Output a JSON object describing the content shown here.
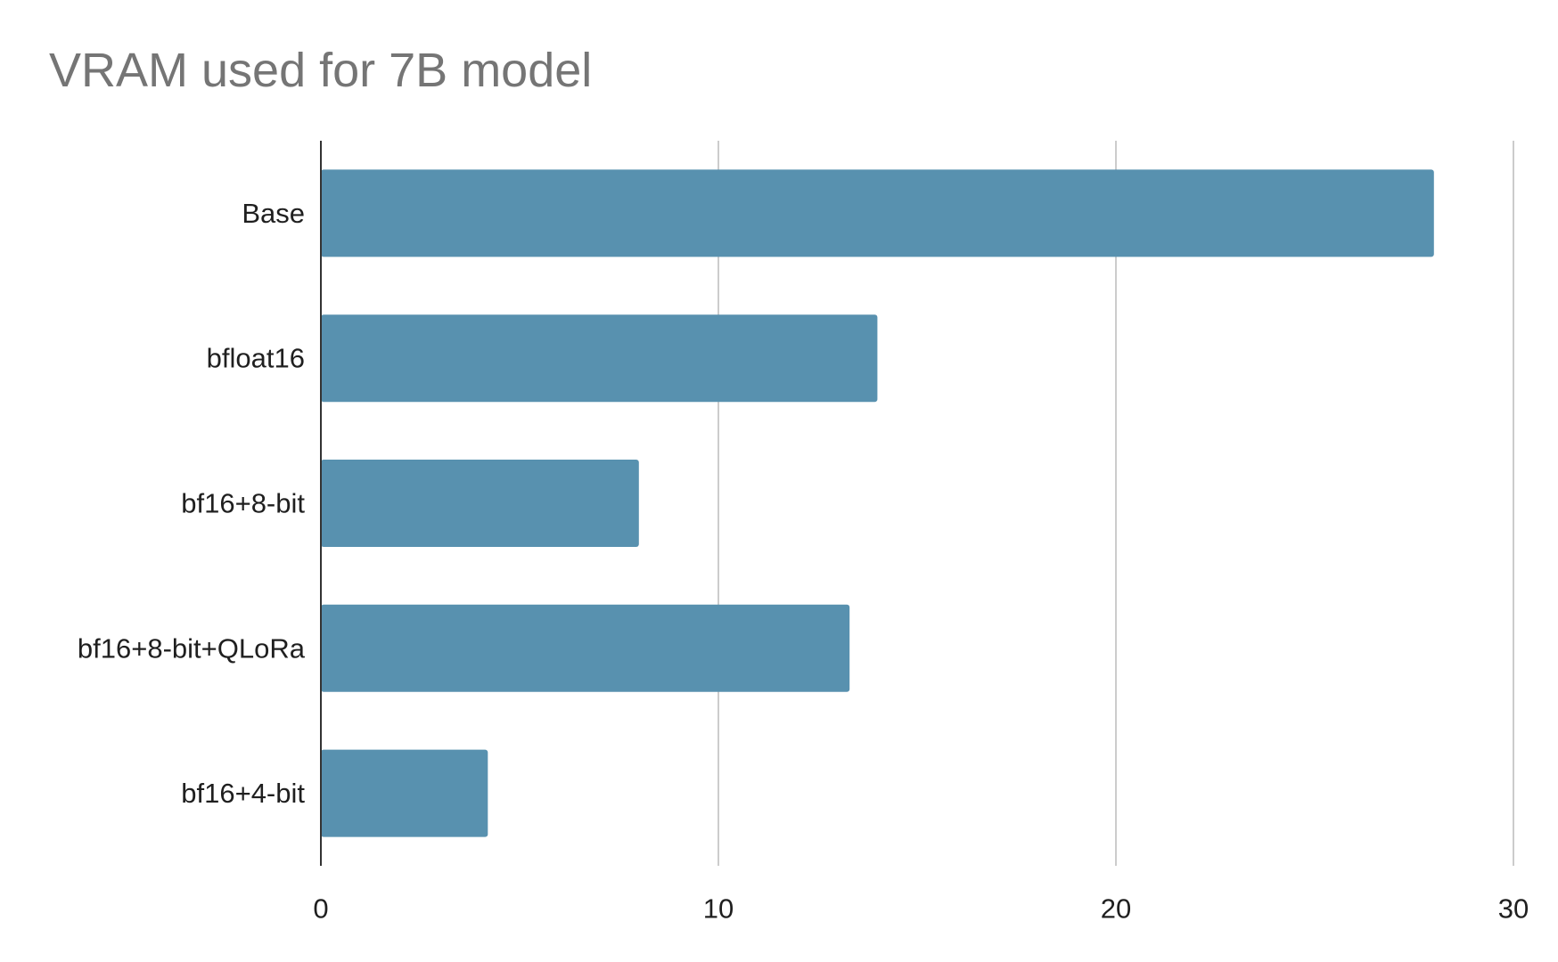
{
  "chart_data": {
    "type": "bar",
    "orientation": "horizontal",
    "title": "VRAM used for 7B model",
    "xlabel": "",
    "ylabel": "",
    "categories": [
      "Base",
      "bfloat16",
      "bf16+8-bit",
      "bf16+8-bit+QLoRa",
      "bf16+4-bit"
    ],
    "values": [
      28,
      14,
      8,
      13.3,
      4.2
    ],
    "xlim": [
      0,
      30
    ],
    "xticks": [
      0,
      10,
      20,
      30
    ],
    "grid": true,
    "legend": "none",
    "bar_color": "#5891af"
  }
}
